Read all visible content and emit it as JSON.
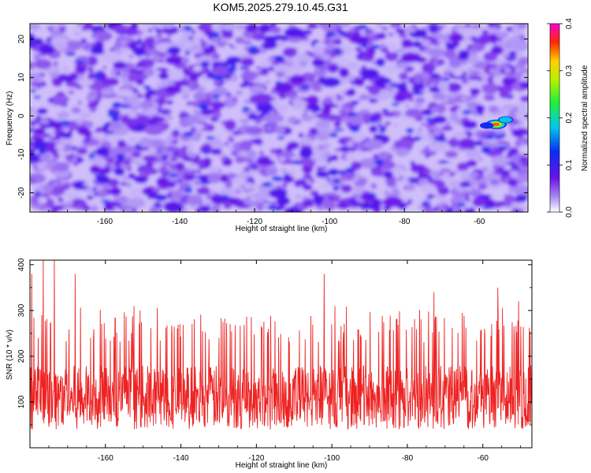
{
  "title": "KOM5.2025.279.10.45.G31",
  "colors": {
    "snr_line": "#ee2222",
    "frame": "#000000"
  },
  "chart_data": [
    {
      "type": "heatmap",
      "xlabel": "Height of straight line (km)",
      "ylabel": "Frequency (Hz)",
      "xlim": [
        -180,
        -47
      ],
      "ylim": [
        -25,
        24
      ],
      "xticks": [
        -160,
        -140,
        -120,
        -100,
        -80,
        -60
      ],
      "xtick_labels": [
        "-160",
        "-140",
        "-120",
        "-100",
        "-80",
        "-60"
      ],
      "yticks": [
        -20,
        -10,
        0,
        10,
        20
      ],
      "ytick_labels": [
        "-20",
        "-10",
        "0",
        "10",
        "20"
      ],
      "colorbar": {
        "label": "Normalized spectral amplitude",
        "range": [
          0,
          0.4
        ],
        "ticks": [
          0,
          0.1,
          0.2,
          0.3,
          0.4
        ],
        "tick_labels": [
          "0.0",
          "0.1",
          "0.2",
          "0.3",
          "0.4"
        ],
        "colormap": "rainbow (white-purple-blue-cyan-green-yellow-red-magenta)"
      },
      "background_level": [
        0.02,
        0.09
      ],
      "peaks": [
        {
          "x": -55.5,
          "y": -2.2,
          "value": 0.37
        },
        {
          "x": -53.0,
          "y": -1.0,
          "value": 0.18
        },
        {
          "x": -58.0,
          "y": -2.5,
          "value": 0.14
        }
      ],
      "grid": false
    },
    {
      "type": "line",
      "xlabel": "Height of straight line (km)",
      "ylabel": "SNR (10 * v/v)",
      "xlim": [
        -180,
        -47
      ],
      "ylim": [
        0,
        410
      ],
      "xticks": [
        -160,
        -140,
        -120,
        -100,
        -80,
        -60
      ],
      "xtick_labels": [
        "-160",
        "-140",
        "-120",
        "-100",
        "-80",
        "-60"
      ],
      "yticks": [
        100,
        200,
        300,
        400
      ],
      "ytick_labels": [
        "100",
        "200",
        "300",
        "400"
      ],
      "series": [
        {
          "baseline_level": 110,
          "typical_band": [
            50,
            230
          ],
          "peaks": [
            {
              "x": -179.5,
              "y": 380
            },
            {
              "x": -176.5,
              "y": 410
            },
            {
              "x": -173.5,
              "y": 410
            },
            {
              "x": -168.0,
              "y": 380
            },
            {
              "x": -102.0,
              "y": 380
            },
            {
              "x": -56.0,
              "y": 350
            },
            {
              "x": -73.0,
              "y": 340
            },
            {
              "x": -50.5,
              "y": 320
            }
          ]
        }
      ],
      "grid": false
    }
  ]
}
